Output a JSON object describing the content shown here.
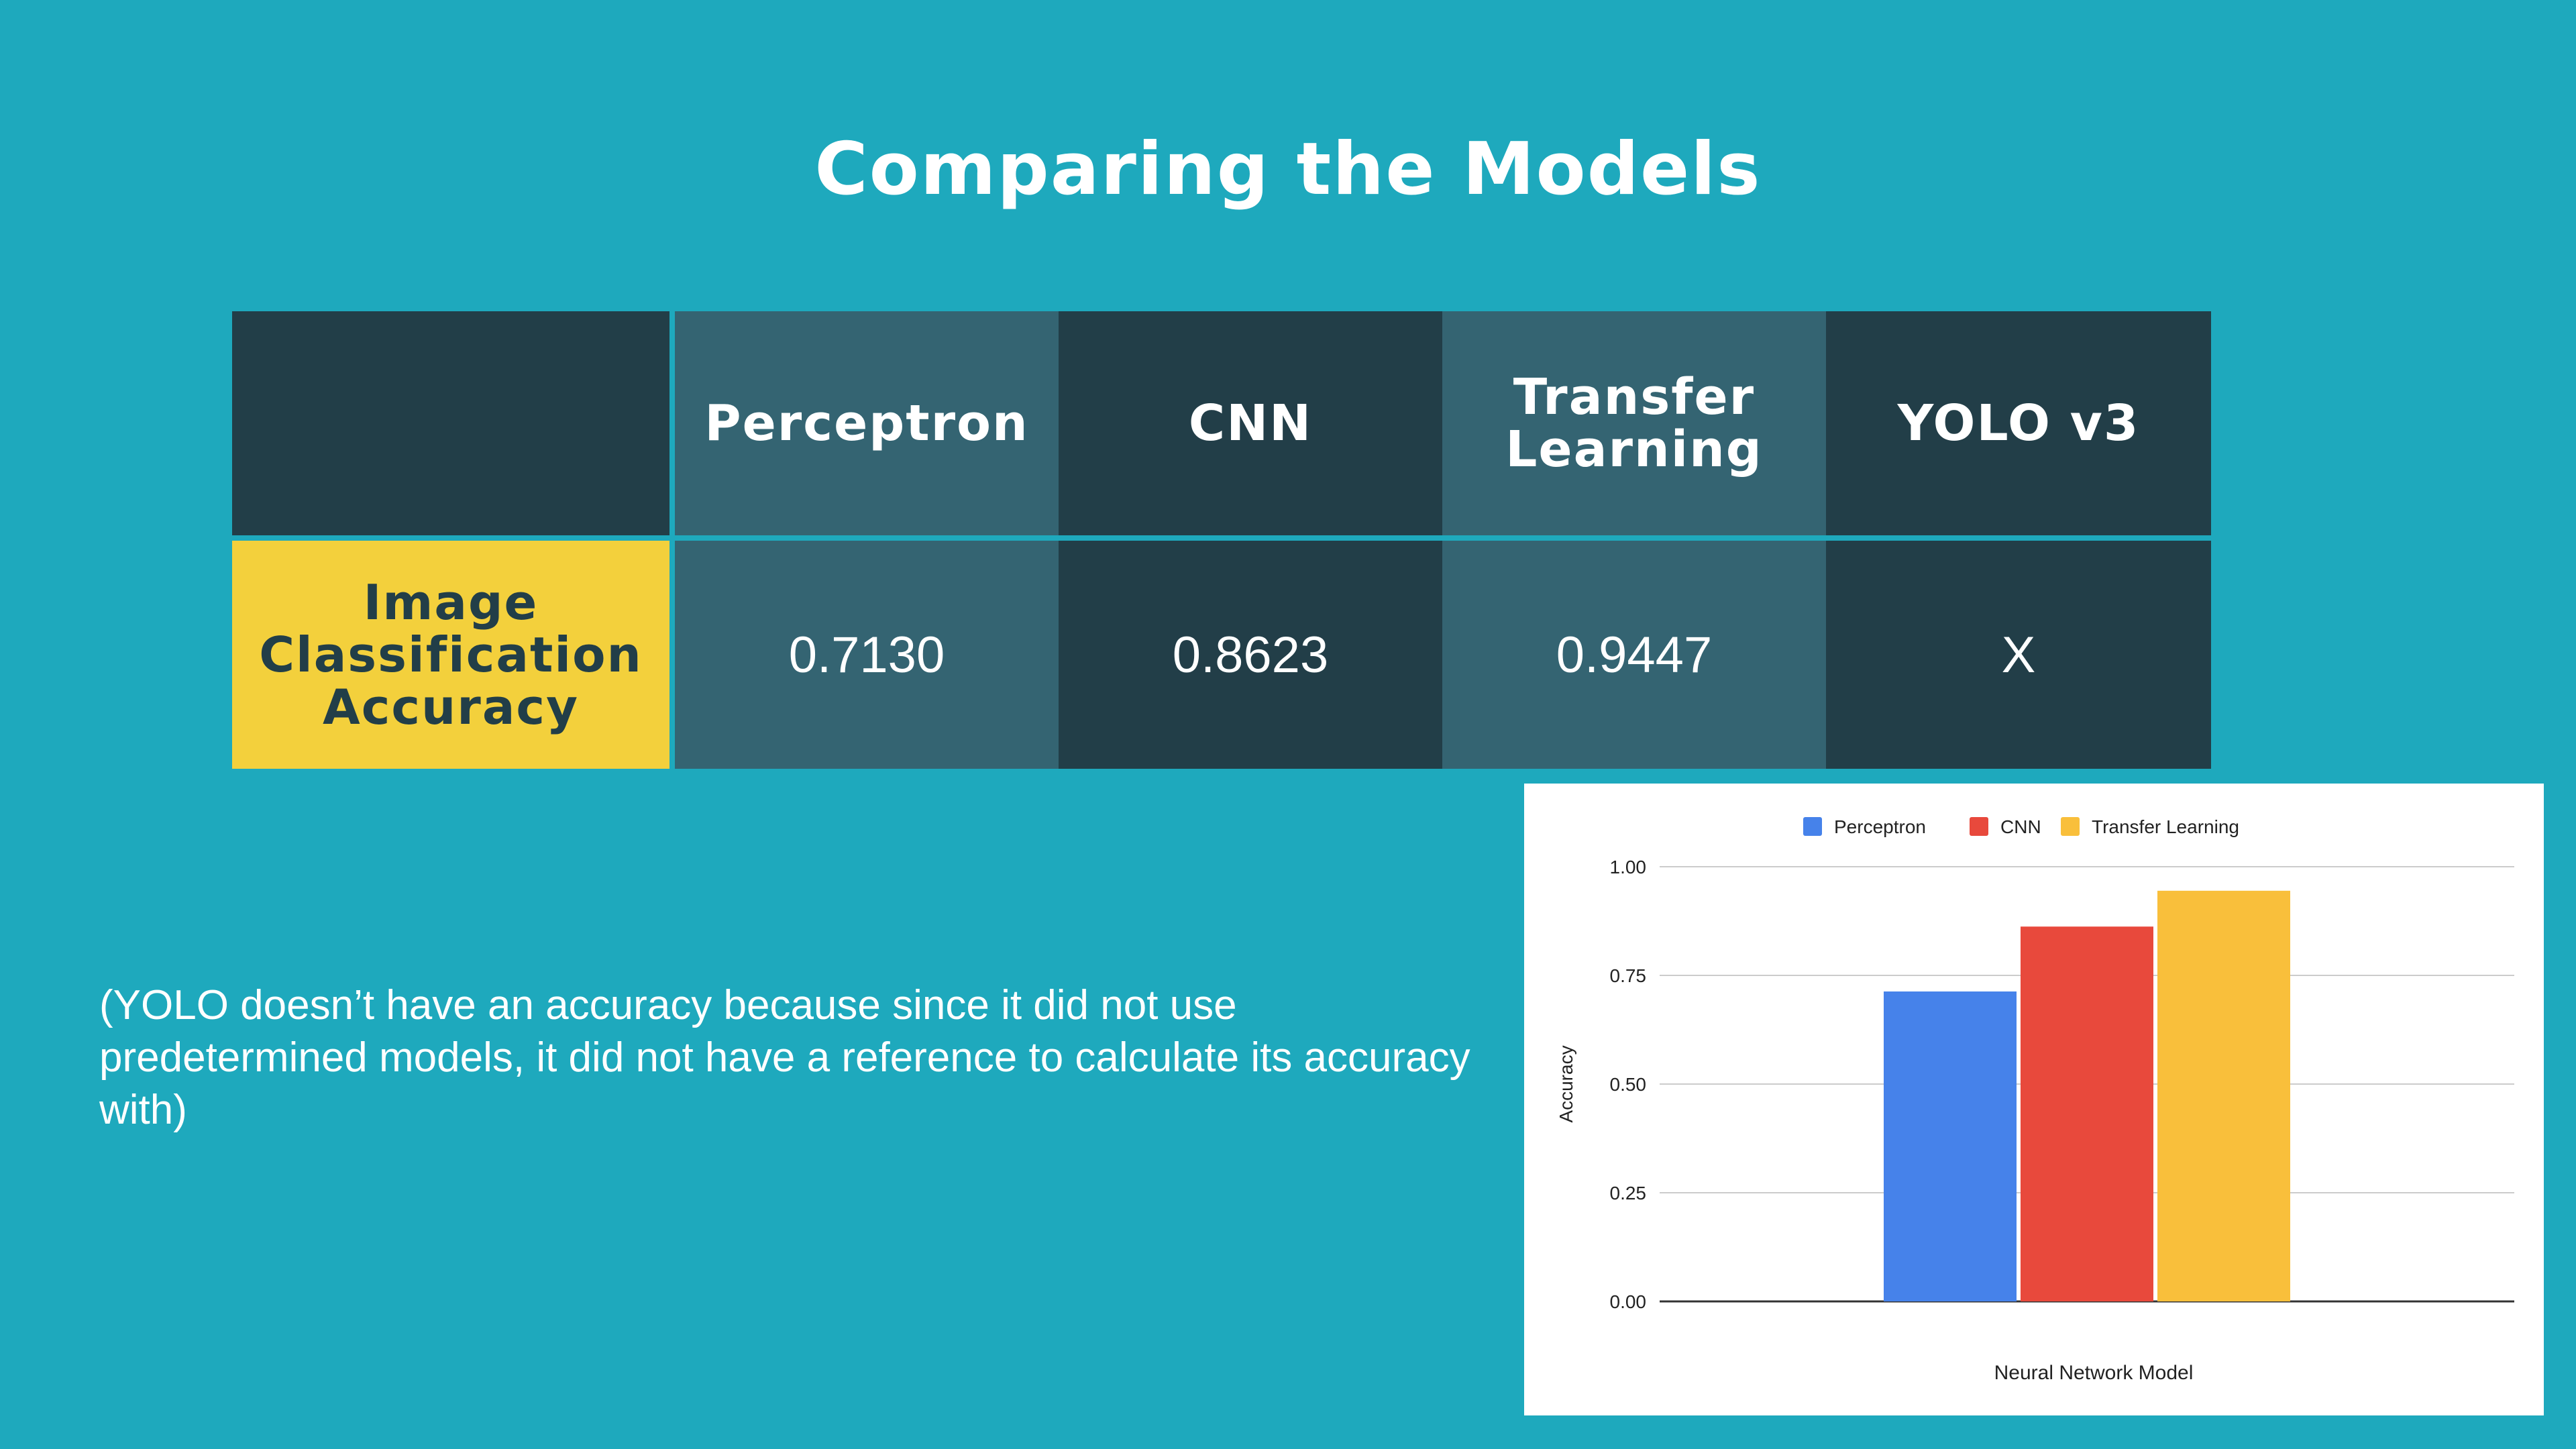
{
  "slide": {
    "title": "Comparing the Models",
    "note": "(YOLO doesn’t have an accuracy because since it did not use predetermined models, it did not have a reference to calculate its accuracy with)"
  },
  "table": {
    "columns": [
      "Perceptron",
      "CNN",
      "Transfer\nLearning",
      "YOLO v3"
    ],
    "row_label": "Image\nClassification\nAccuracy",
    "values": [
      "0.7130",
      "0.8623",
      "0.9447",
      "X"
    ]
  },
  "colors": {
    "background": "#1ea9bd",
    "cell_dark": "#223e48",
    "cell_mid": "#346472",
    "row_label_bg": "#f3d03c"
  },
  "chart_data": {
    "type": "bar",
    "categories": [
      ""
    ],
    "series": [
      {
        "name": "Perceptron",
        "values": [
          0.713
        ],
        "color": "#4682ea"
      },
      {
        "name": "CNN",
        "values": [
          0.8623
        ],
        "color": "#e8493c"
      },
      {
        "name": "Transfer Learning",
        "values": [
          0.9447
        ],
        "color": "#f9bf3b"
      }
    ],
    "xlabel": "Neural Network Model",
    "ylabel": "Accuracy",
    "ylim": [
      0,
      1
    ],
    "yticks": [
      "0.00",
      "0.25",
      "0.50",
      "0.75",
      "1.00"
    ],
    "grid": true,
    "legend": "top"
  }
}
